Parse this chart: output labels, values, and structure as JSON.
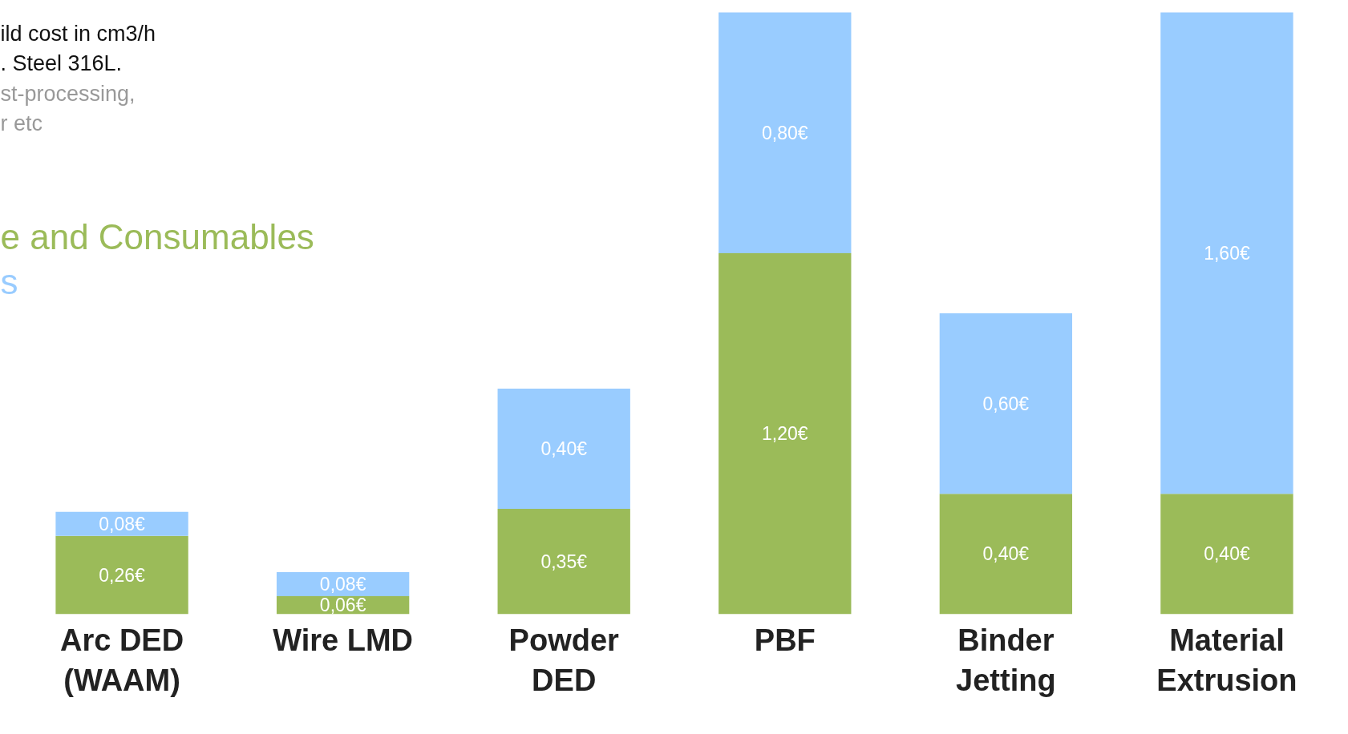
{
  "chart_data": {
    "type": "bar",
    "stacked": true,
    "categories": [
      "Arc DED\n(WAAM)",
      "Wire LMD",
      "Powder\nDED",
      "PBF",
      "Binder\nJetting",
      "Material\nExtrusion"
    ],
    "series": [
      {
        "name": "e and Consumables",
        "color": "#9bbb59",
        "values": [
          0.26,
          0.06,
          0.35,
          1.2,
          0.4,
          0.4
        ],
        "value_labels": [
          "0,26€",
          "0,06€",
          "0,35€",
          "1,20€",
          "0,40€",
          "0,40€"
        ]
      },
      {
        "name": "s",
        "color": "#99ccff",
        "values": [
          0.08,
          0.08,
          0.4,
          0.8,
          0.6,
          1.6
        ],
        "value_labels": [
          "0,08€",
          "0,08€",
          "0,40€",
          "0,80€",
          "0,60€",
          "1,60€"
        ]
      }
    ],
    "ylim": [
      0,
      2.0
    ],
    "annotations": [
      "ild cost in cm3/h",
      ". Steel 316L.",
      "st-processing,",
      "r etc"
    ],
    "legend": "top left",
    "grid": false
  }
}
